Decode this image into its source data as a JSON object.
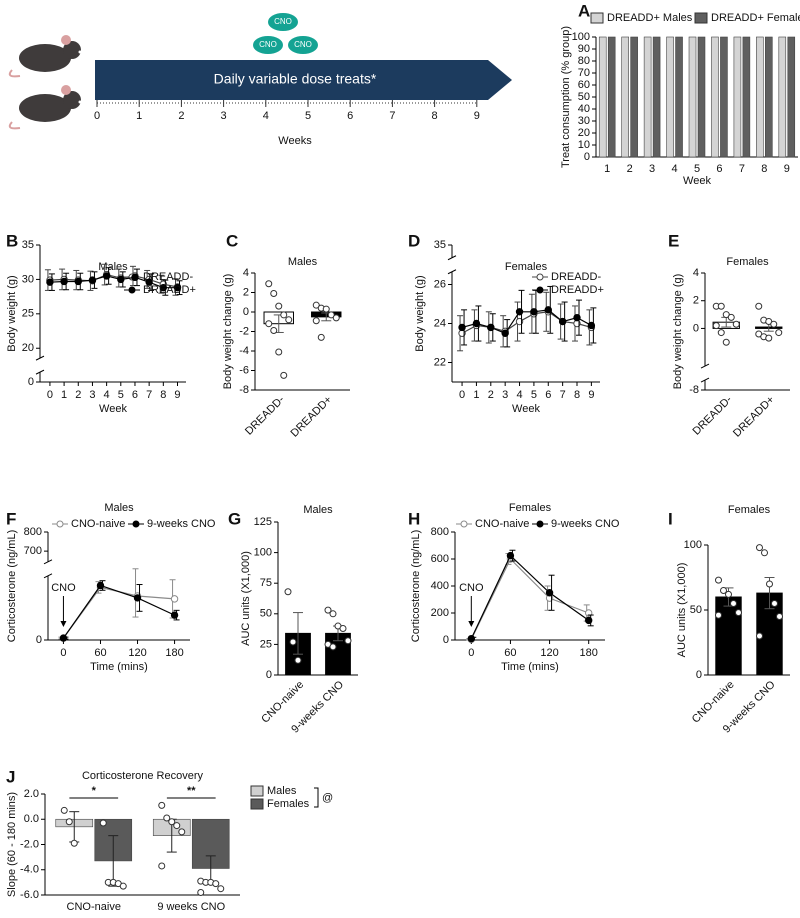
{
  "timeline": {
    "badges": [
      "CNO",
      "CNO",
      "CNO"
    ],
    "banner": "Daily variable dose treats*",
    "weeks": [
      0,
      1,
      2,
      3,
      4,
      5,
      6,
      7,
      8,
      9
    ],
    "axis_label": "Weeks"
  },
  "chart_data": [
    {
      "type": "bar",
      "panel": "A",
      "ylabel": "Treat consumption (% group)",
      "xlabel": "Week",
      "categories": [
        "1",
        "2",
        "3",
        "4",
        "5",
        "6",
        "7",
        "8",
        "9"
      ],
      "series": [
        {
          "name": "DREADD+ Males",
          "color": "#d4d4d4",
          "values": [
            100,
            100,
            100,
            100,
            100,
            100,
            100,
            100,
            100
          ]
        },
        {
          "name": "DREADD+ Females",
          "color": "#5f5f5f",
          "values": [
            100,
            100,
            100,
            100,
            100,
            100,
            100,
            100,
            100
          ]
        }
      ],
      "ylim": [
        0,
        100
      ],
      "yticks": [
        0,
        10,
        20,
        30,
        40,
        50,
        60,
        70,
        80,
        90,
        100
      ]
    },
    {
      "type": "line",
      "panel": "B",
      "title": "Males",
      "ylabel": "Body weight (g)",
      "xlabel": "Week",
      "x": [
        0,
        1,
        2,
        3,
        4,
        5,
        6,
        7,
        8,
        9
      ],
      "xlim": [
        -0.7,
        9.6
      ],
      "xticks": [
        0,
        1,
        2,
        3,
        4,
        5,
        6,
        7,
        8,
        9
      ],
      "ylim": [
        0,
        35
      ],
      "y_break": [
        1,
        19
      ],
      "yticks": [
        0,
        20,
        25,
        30,
        35
      ],
      "series": [
        {
          "name": "DREADD-",
          "color": "#444444",
          "marker": "open",
          "values": [
            29.9,
            30.0,
            29.9,
            29.8,
            30.7,
            30.2,
            30.5,
            30.0,
            29.3,
            28.9
          ],
          "errors": [
            1.5,
            1.5,
            1.4,
            1.4,
            1.5,
            1.3,
            1.4,
            1.3,
            1.3,
            1.2
          ]
        },
        {
          "name": "DREADD+",
          "color": "#000000",
          "marker": "filled",
          "values": [
            29.6,
            29.7,
            29.7,
            29.9,
            30.5,
            30.0,
            30.3,
            29.6,
            28.8,
            28.8
          ],
          "errors": [
            1.2,
            1.2,
            1.2,
            1.2,
            1.2,
            1.1,
            1.2,
            1.2,
            1.1,
            1.0
          ]
        }
      ]
    },
    {
      "type": "bar_scatter",
      "panel": "C",
      "title": "Males",
      "ylabel": "Body weight change (g)",
      "categories": [
        "DREADD-",
        "DREADD+"
      ],
      "values": [
        -1.2,
        -0.5
      ],
      "errors": [
        0.9,
        0.4
      ],
      "bar_colors": [
        "#ffffff",
        "#000000"
      ],
      "points": [
        [
          2.9,
          1.9,
          0.6,
          -0.3,
          -0.8,
          -1.2,
          -1.9,
          -4.1,
          -6.5
        ],
        [
          0.7,
          0.4,
          0.3,
          -0.3,
          -0.6,
          -0.9,
          -2.6
        ]
      ],
      "ylim": [
        -8,
        4
      ],
      "yticks": [
        -8,
        -6,
        -4,
        -2,
        0,
        2,
        4
      ]
    },
    {
      "type": "line",
      "panel": "D",
      "title": "Females",
      "ylabel": "Body weight (g)",
      "xlabel": "Week",
      "x": [
        0,
        1,
        2,
        3,
        4,
        5,
        6,
        7,
        8,
        9
      ],
      "xlim": [
        -0.7,
        9.6
      ],
      "xticks": [
        0,
        1,
        2,
        3,
        4,
        5,
        6,
        7,
        8,
        9
      ],
      "ylim": [
        21,
        35
      ],
      "y_break": [
        26.5,
        34.5
      ],
      "yticks": [
        22,
        24,
        26,
        35
      ],
      "series": [
        {
          "name": "DREADD-",
          "color": "#444444",
          "marker": "open",
          "values": [
            23.5,
            23.9,
            23.8,
            23.6,
            24.1,
            24.5,
            24.6,
            24.1,
            24.0,
            23.8
          ],
          "errors": [
            0.9,
            0.8,
            0.8,
            0.8,
            1.0,
            1.0,
            1.0,
            0.9,
            0.9,
            0.9
          ]
        },
        {
          "name": "DREADD+",
          "color": "#000000",
          "marker": "filled",
          "values": [
            23.8,
            24.0,
            23.8,
            23.5,
            24.6,
            24.6,
            24.7,
            24.1,
            24.3,
            23.9
          ],
          "errors": [
            0.9,
            0.9,
            0.7,
            0.7,
            1.1,
            1.1,
            1.2,
            1.0,
            0.9,
            0.9
          ]
        }
      ]
    },
    {
      "type": "bar_scatter",
      "panel": "E",
      "title": "Females",
      "ylabel": "Body weight change (g)",
      "categories": [
        "DREADD-",
        "DREADD+"
      ],
      "values": [
        0.45,
        0.1
      ],
      "errors": [
        0.35,
        0.3
      ],
      "bar_colors": [
        "#ffffff",
        "#000000"
      ],
      "points": [
        [
          1.6,
          1.6,
          1.0,
          0.8,
          0.3,
          0.2,
          -0.3,
          -1.0
        ],
        [
          1.6,
          0.6,
          0.5,
          0.3,
          -0.3,
          -0.4,
          -0.6,
          -0.7
        ]
      ],
      "ylim": [
        -8,
        4
      ],
      "y_break": [
        -7.5,
        -2.5
      ],
      "yticks": [
        -8,
        0,
        2,
        4
      ]
    },
    {
      "type": "line",
      "panel": "F",
      "title": "Males",
      "ylabel": "Corticosterone (ng/mL)",
      "xlabel": "Time (mins)",
      "annotation": "CNO",
      "x": [
        0,
        60,
        120,
        180
      ],
      "xlim": [
        -25,
        205
      ],
      "xticks": [
        0,
        60,
        120,
        180
      ],
      "ylim": [
        0,
        800
      ],
      "y_break": [
        320,
        660
      ],
      "yticks": [
        0,
        700,
        800
      ],
      "series": [
        {
          "name": "CNO-naive",
          "color": "#8a8a8a",
          "marker": "open",
          "values": [
            10,
            275,
            230,
            215
          ],
          "errors": [
            5,
            30,
            110,
            100
          ]
        },
        {
          "name": "9-weeks CNO",
          "color": "#000000",
          "marker": "filled",
          "values": [
            10,
            285,
            220,
            130
          ],
          "errors": [
            5,
            25,
            70,
            25
          ]
        }
      ]
    },
    {
      "type": "bar_scatter",
      "panel": "G",
      "title": "Males",
      "ylabel": "AUC units (X1,000)",
      "categories": [
        "CNO-naive",
        "9-weeks CNO"
      ],
      "values": [
        34,
        34
      ],
      "errors": [
        17,
        6
      ],
      "bar_colors": [
        "#000000",
        "#000000"
      ],
      "points": [
        [
          68,
          27,
          12
        ],
        [
          53,
          50,
          40,
          38,
          28,
          25,
          23
        ]
      ],
      "ylim": [
        0,
        125
      ],
      "yticks": [
        0,
        25,
        50,
        75,
        100,
        125
      ]
    },
    {
      "type": "line",
      "panel": "H",
      "title": "Females",
      "ylabel": "Corticosterone (ng/mL)",
      "xlabel": "Time (mins)",
      "annotation": "CNO",
      "x": [
        0,
        60,
        120,
        180
      ],
      "xlim": [
        -25,
        205
      ],
      "xticks": [
        0,
        60,
        120,
        180
      ],
      "ylim": [
        0,
        800
      ],
      "yticks": [
        0,
        200,
        400,
        600,
        800
      ],
      "series": [
        {
          "name": "CNO-naive",
          "color": "#8a8a8a",
          "marker": "open",
          "values": [
            5,
            600,
            310,
            200
          ],
          "errors": [
            5,
            40,
            90,
            60
          ]
        },
        {
          "name": "9-weeks CNO",
          "color": "#000000",
          "marker": "filled",
          "values": [
            10,
            625,
            350,
            145
          ],
          "errors": [
            10,
            40,
            130,
            40
          ]
        }
      ]
    },
    {
      "type": "bar_scatter",
      "panel": "I",
      "title": "Females",
      "ylabel": "AUC units (X1,000)",
      "categories": [
        "CNO-naive",
        "9-weeks CNO"
      ],
      "values": [
        60,
        63
      ],
      "errors": [
        7,
        12
      ],
      "bar_colors": [
        "#000000",
        "#000000"
      ],
      "points": [
        [
          73,
          65,
          62,
          55,
          48,
          46
        ],
        [
          98,
          94,
          70,
          55,
          45,
          30
        ]
      ],
      "ylim": [
        0,
        100
      ],
      "yticks": [
        0,
        50,
        100
      ]
    },
    {
      "type": "bar",
      "panel": "J",
      "title": "Corticosterone Recovery",
      "ylabel": "Slope (60 - 180 mins)",
      "categories": [
        "CNO-naive",
        "9 weeks CNO"
      ],
      "series": [
        {
          "name": "Males",
          "color": "#d0d0d0",
          "values": [
            -0.6,
            -1.3
          ],
          "errors": [
            1.2,
            1.3
          ],
          "points": [
            [
              0.7,
              -0.2,
              -1.9
            ],
            [
              1.1,
              0.1,
              -0.2,
              -0.5,
              -1.0,
              -3.7
            ]
          ]
        },
        {
          "name": "Females",
          "color": "#5a5a5a",
          "values": [
            -3.3,
            -3.9
          ],
          "errors": [
            2.0,
            1.0
          ],
          "points": [
            [
              -0.3,
              -5.0,
              -5.0,
              -5.1,
              -5.3
            ],
            [
              -4.9,
              -5.0,
              -5.0,
              -5.1,
              -5.5,
              -5.8
            ]
          ]
        }
      ],
      "annotations": [
        "*",
        "**",
        "@"
      ],
      "ylim": [
        -6,
        2
      ],
      "yticks": [
        {
          "value": -6,
          "label": "-6.0"
        },
        {
          "value": -4,
          "label": "-4.0"
        },
        {
          "value": -2,
          "label": "-2.0"
        },
        {
          "value": 0,
          "label": "0.0"
        },
        {
          "value": 2,
          "label": "2.0"
        }
      ]
    }
  ]
}
